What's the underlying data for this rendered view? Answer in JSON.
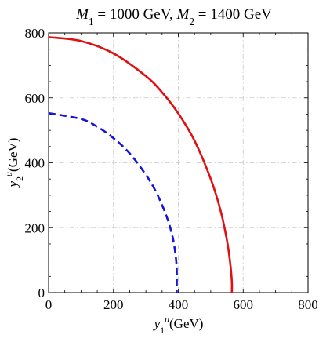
{
  "chart_data": {
    "type": "line",
    "title_parts": [
      {
        "text": "M",
        "italic": true
      },
      {
        "text": "1",
        "sub": true
      },
      {
        "text": " = 1000 GeV, "
      },
      {
        "text": "M",
        "italic": true
      },
      {
        "text": "2",
        "sub": true
      },
      {
        "text": " = 1400 GeV"
      }
    ],
    "xlabel_parts": [
      {
        "text": "y",
        "italic": true
      },
      {
        "text": "1",
        "sub": true
      },
      {
        "text": "u",
        "sup": true,
        "italic": true
      },
      {
        "text": "(GeV)"
      }
    ],
    "ylabel_parts": [
      {
        "text": "y",
        "italic": true
      },
      {
        "text": "2",
        "sub": true
      },
      {
        "text": "u",
        "sup": true,
        "italic": true
      },
      {
        "text": "(GeV)"
      }
    ],
    "xlim": [
      0,
      800
    ],
    "ylim": [
      0,
      800
    ],
    "xticks": [
      0,
      200,
      400,
      600,
      800
    ],
    "yticks": [
      0,
      200,
      400,
      600,
      800
    ],
    "xtick_labels": [
      "0",
      "200",
      "400",
      "600",
      "800"
    ],
    "ytick_labels": [
      "0",
      "200",
      "400",
      "600",
      "800"
    ],
    "grid": true,
    "series": [
      {
        "style": "solid",
        "color": "#e01010",
        "x": [
          0,
          100,
          200,
          300,
          350,
          400,
          450,
          500,
          530,
          550,
          560,
          565,
          565
        ],
        "y": [
          787,
          775,
          737,
          667,
          617,
          552,
          468,
          350,
          254,
          161,
          91,
          35,
          0
        ]
      },
      {
        "style": "dashed",
        "color": "#1515d8",
        "x": [
          0,
          100,
          150,
          200,
          250,
          300,
          330,
          360,
          380,
          390,
          395,
          395
        ],
        "y": [
          553,
          535,
          511,
          476,
          429,
          363,
          313,
          245,
          182,
          127,
          73,
          0
        ]
      }
    ]
  }
}
